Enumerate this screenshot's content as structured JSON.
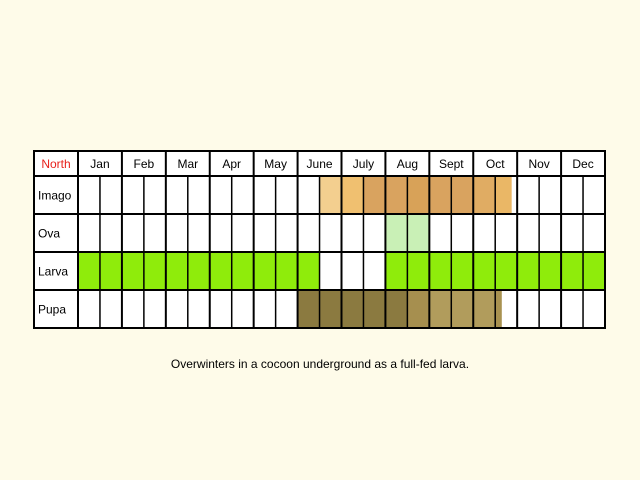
{
  "chart_data": {
    "type": "table",
    "corner_label": "North",
    "months": [
      "Jan",
      "Feb",
      "Mar",
      "Apr",
      "May",
      "June",
      "July",
      "Aug",
      "Sept",
      "Oct",
      "Nov",
      "Dec"
    ],
    "stages": [
      "Imago",
      "Ova",
      "Larva",
      "Pupa"
    ],
    "columns_per_month": 2,
    "cells": {
      "Imago": [
        "",
        "",
        "",
        "",
        "",
        "",
        "",
        "",
        "",
        "",
        "",
        "#f3cf8f",
        "#f0c070",
        "#d9a35f",
        "#d9a35f",
        "#d8a258",
        "#d9a35f",
        "#d9a35f",
        "#e0ac63",
        "#eab766",
        "",
        "",
        "",
        ""
      ],
      "Ova": [
        "",
        "",
        "",
        "",
        "",
        "",
        "",
        "",
        "",
        "",
        "",
        "",
        "",
        "",
        "#c9f0b6",
        "#c9f0b6",
        "",
        "",
        "",
        "",
        "",
        "",
        "",
        ""
      ],
      "Larva": [
        "#8fec0b",
        "#8fec0b",
        "#8fec0b",
        "#8fec0b",
        "#8fec0b",
        "#8fec0b",
        "#8fec0b",
        "#8fec0b",
        "#8fec0b",
        "#8fec0b",
        "#8fec0b",
        "",
        "",
        "",
        "#8fec0b",
        "#8fec0b",
        "#8fec0b",
        "#8fec0b",
        "#8fec0b",
        "#8fec0b",
        "#8fec0b",
        "#8fec0b",
        "#8fec0b",
        "#8fec0b"
      ],
      "Pupa": [
        "",
        "",
        "",
        "",
        "",
        "",
        "",
        "",
        "",
        "",
        "#8b7a40",
        "#8b7a40",
        "#8b7a40",
        "#8b7a40",
        "#8b7a40",
        "#a68f4f",
        "#b19c5c",
        "#b19c5c",
        "#b19c5c",
        "#a99250",
        "",
        "",
        "",
        ""
      ]
    },
    "partial_fills": {
      "Imago": [
        {
          "cell": 11,
          "from": 0.0,
          "to": 1.0
        },
        {
          "cell": 19,
          "from": 0.0,
          "to": 0.75
        }
      ],
      "Larva": [
        {
          "cell": 13,
          "from": 0.7,
          "to": 1.0
        }
      ],
      "Pupa": [
        {
          "cell": 19,
          "from": 0.0,
          "to": 0.3
        }
      ]
    },
    "caption": "Overwinters in a cocoon underground as a full-fed larva.",
    "colors": {
      "background": "#fefbe9",
      "empty_cell": "#ffffff",
      "grid": "#000000",
      "corner_label": "#e8211b",
      "text": "#000000"
    }
  }
}
